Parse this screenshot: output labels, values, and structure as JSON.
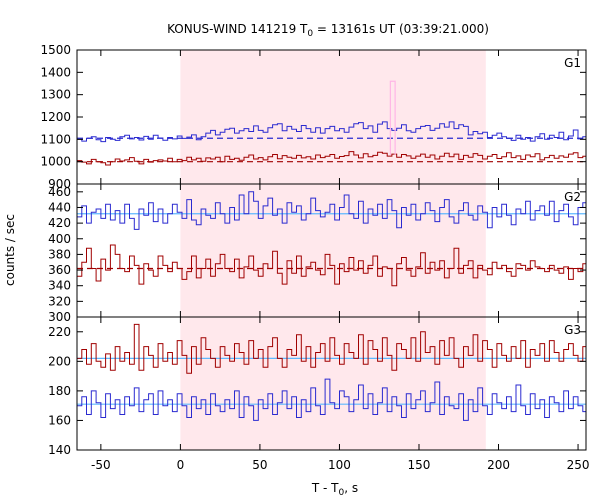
{
  "chart_data": {
    "type": "line",
    "title_prefix": "KONUS-WIND 141219 T",
    "title_sub": "0",
    "title_suffix": " = 13161s UT (03:39:21.000)",
    "ylabel": "counts / sec",
    "xlabel_prefix": "T - T",
    "xlabel_sub": "0",
    "xlabel_suffix": ", s",
    "xlim": [
      -65,
      255
    ],
    "x_ticks": [
      -50,
      0,
      50,
      100,
      150,
      200,
      250
    ],
    "highlight_interval": [
      0,
      192
    ],
    "colors": {
      "red": "#a00000",
      "blue": "#2a2ad0",
      "cyan": "#5fb8ff",
      "pink": "#ffb6e6",
      "shade": "#ffe8ec"
    },
    "panels": [
      {
        "label": "G1",
        "ylim": [
          900,
          1500
        ],
        "y_ticks": [
          900,
          1000,
          1100,
          1200,
          1300,
          1400,
          1500
        ],
        "background_levels": [
          {
            "series": "red",
            "value": 1000,
            "style": "dashed"
          },
          {
            "series": "blue",
            "value": 1105,
            "style": "dashed"
          }
        ],
        "spike": {
          "x_start": 132,
          "x_end": 135,
          "value": 1360,
          "color": "pink"
        },
        "series": [
          {
            "color": "red",
            "x_start": -65,
            "bin_width": 3,
            "values": [
              1005,
              998,
              990,
              1010,
              1000,
              995,
              985,
              1000,
              1012,
              1003,
              1008,
              1018,
              1002,
              990,
              1010,
              998,
              1005,
              1008,
              1003,
              1015,
              1000,
              1010,
              1005,
              1020,
              1008,
              1015,
              1002,
              1017,
              1012,
              1020,
              1000,
              1024,
              1010,
              1015,
              1006,
              1020,
              1030,
              1012,
              1018,
              1008,
              1022,
              1032,
              1013,
              1027,
              1020,
              1015,
              1028,
              1017,
              1022,
              1012,
              1030,
              1018,
              1024,
              1032,
              1015,
              1023,
              1027,
              1045,
              1030,
              1017,
              1035,
              1022,
              1028,
              1042,
              1038,
              1025,
              1034,
              1020,
              1032,
              1026,
              1015,
              1025,
              1034,
              1020,
              1030,
              1012,
              1024,
              1038,
              1022,
              1034,
              1010,
              1028,
              1020,
              1036,
              1028,
              1012,
              1024,
              1032,
              1014,
              1022,
              1040,
              1018,
              1026,
              1010,
              1030,
              1022,
              1035,
              1008,
              1018,
              1028,
              1015,
              1026,
              1020,
              1034,
              1040,
              1018,
              1024,
              1012
            ]
          },
          {
            "color": "blue",
            "x_start": -65,
            "bin_width": 3,
            "values": [
              1100,
              1092,
              1105,
              1112,
              1098,
              1090,
              1108,
              1100,
              1095,
              1112,
              1118,
              1102,
              1108,
              1097,
              1113,
              1100,
              1118,
              1106,
              1096,
              1108,
              1102,
              1115,
              1104,
              1110,
              1120,
              1098,
              1112,
              1128,
              1140,
              1120,
              1132,
              1145,
              1150,
              1128,
              1138,
              1148,
              1135,
              1160,
              1140,
              1132,
              1152,
              1165,
              1170,
              1138,
              1158,
              1145,
              1135,
              1162,
              1148,
              1132,
              1152,
              1128,
              1148,
              1158,
              1138,
              1148,
              1132,
              1155,
              1170,
              1175,
              1148,
              1160,
              1132,
              1168,
              1178,
              1148,
              1140,
              1150,
              1165,
              1138,
              1132,
              1148,
              1158,
              1162,
              1140,
              1150,
              1170,
              1155,
              1178,
              1148,
              1165,
              1158,
              1120,
              1135,
              1125,
              1132,
              1108,
              1118,
              1128,
              1112,
              1104,
              1095,
              1118,
              1100,
              1108,
              1092,
              1112,
              1125,
              1100,
              1118,
              1108,
              1132,
              1098,
              1115,
              1142,
              1102,
              1112,
              1120
            ]
          }
        ]
      },
      {
        "label": "G2",
        "ylim": [
          300,
          470
        ],
        "y_ticks": [
          300,
          320,
          340,
          360,
          380,
          400,
          420,
          440,
          460
        ],
        "background_levels": [
          {
            "series": "red",
            "value": 362,
            "style": "dashed"
          },
          {
            "series": "blue",
            "value": 432,
            "style": "solid"
          }
        ],
        "series": [
          {
            "color": "red",
            "x_start": -65,
            "bin_width": 3,
            "values": [
              352,
              370,
              388,
              362,
              346,
              374,
              360,
              392,
              380,
              362,
              358,
              378,
              366,
              342,
              368,
              360,
              352,
              378,
              366,
              358,
              370,
              362,
              348,
              358,
              378,
              350,
              362,
              374,
              352,
              368,
              380,
              362,
              358,
              374,
              350,
              364,
              378,
              360,
              352,
              368,
              362,
              384,
              356,
              342,
              372,
              356,
              378,
              352,
              364,
              370,
              360,
              354,
              380,
              366,
              342,
              368,
              358,
              376,
              360,
              372,
              356,
              366,
              378,
              352,
              364,
              362,
              340,
              368,
              376,
              360,
              352,
              364,
              382,
              356,
              370,
              360,
              372,
              350,
              362,
              388,
              356,
              366,
              372,
              350,
              366,
              360,
              354,
              370,
              362,
              366,
              358,
              352,
              368,
              366,
              360,
              372,
              364,
              362,
              358,
              366,
              360,
              356,
              364,
              348,
              362,
              358,
              368,
              354
            ]
          },
          {
            "color": "blue",
            "x_start": -65,
            "bin_width": 3,
            "values": [
              428,
              442,
              420,
              434,
              438,
              426,
              444,
              424,
              436,
              420,
              444,
              426,
              412,
              438,
              430,
              446,
              422,
              438,
              420,
              432,
              444,
              434,
              426,
              450,
              424,
              418,
              438,
              430,
              426,
              446,
              432,
              420,
              440,
              424,
              456,
              432,
              460,
              448,
              426,
              442,
              452,
              430,
              438,
              420,
              446,
              434,
              442,
              424,
              432,
              452,
              436,
              428,
              434,
              444,
              424,
              440,
              456,
              432,
              426,
              448,
              420,
              438,
              430,
              444,
              426,
              450,
              436,
              414,
              440,
              430,
              444,
              424,
              432,
              446,
              436,
              422,
              440,
              450,
              428,
              420,
              436,
              446,
              430,
              424,
              442,
              434,
              414,
              440,
              428,
              444,
              430,
              418,
              438,
              432,
              448,
              424,
              436,
              442,
              430,
              448,
              422,
              436,
              444,
              428,
              418,
              440,
              446,
              430
            ]
          }
        ]
      },
      {
        "label": "G3",
        "ylim": [
          140,
          230
        ],
        "y_ticks": [
          140,
          160,
          180,
          200,
          220
        ],
        "background_levels": [
          {
            "series": "red",
            "value": 202,
            "style": "solid"
          },
          {
            "series": "blue",
            "value": 171,
            "style": "solid"
          }
        ],
        "series": [
          {
            "color": "red",
            "x_start": -65,
            "bin_width": 3,
            "values": [
              202,
              208,
              198,
              212,
              200,
              196,
              205,
              194,
              210,
              200,
              206,
              198,
              225,
              194,
              210,
              204,
              196,
              212,
              200,
              206,
              198,
              214,
              204,
              192,
              210,
              198,
              216,
              208,
              202,
              196,
              210,
              204,
              200,
              212,
              206,
              198,
              214,
              202,
              208,
              196,
              210,
              216,
              202,
              196,
              208,
              204,
              218,
              200,
              210,
              196,
              206,
              212,
              200,
              216,
              204,
              198,
              212,
              206,
              202,
              218,
              198,
              214,
              208,
              200,
              216,
              204,
              194,
              212,
              208,
              202,
              216,
              200,
              220,
              206,
              210,
              198,
              214,
              204,
              216,
              202,
              196,
              210,
              204,
              218,
              200,
              214,
              208,
              196,
              212,
              204,
              200,
              210,
              202,
              214,
              196,
              208,
              204,
              212,
              200,
              214,
              206,
              200,
              208,
              212,
              204,
              200,
              210,
              198
            ]
          },
          {
            "color": "blue",
            "x_start": -65,
            "bin_width": 3,
            "values": [
              170,
              176,
              164,
              180,
              172,
              162,
              178,
              168,
              174,
              164,
              176,
              170,
              182,
              166,
              174,
              178,
              164,
              180,
              170,
              174,
              166,
              178,
              170,
              162,
              176,
              168,
              174,
              164,
              178,
              170,
              166,
              174,
              168,
              180,
              162,
              176,
              170,
              160,
              174,
              168,
              178,
              164,
              172,
              180,
              168,
              176,
              162,
              174,
              166,
              182,
              170,
              164,
              188,
              172,
              168,
              180,
              176,
              166,
              174,
              184,
              168,
              178,
              164,
              172,
              182,
              166,
              176,
              170,
              162,
              178,
              168,
              174,
              180,
              166,
              172,
              186,
              164,
              176,
              170,
              168,
              178,
              160,
              174,
              166,
              182,
              170,
              164,
              178,
              172,
              168,
              176,
              166,
              184,
              170,
              164,
              178,
              168,
              174,
              162,
              176,
              172,
              166,
              180,
              168,
              176,
              170,
              166,
              174
            ]
          }
        ]
      }
    ]
  }
}
